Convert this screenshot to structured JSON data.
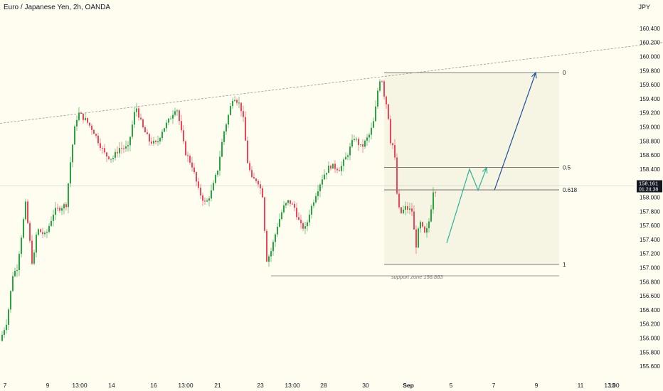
{
  "header": {
    "title": "Euro / Japanese Yen, 2h, OANDA",
    "unit": "JPY"
  },
  "colors": {
    "background": "#fffdf0",
    "up": "#26a641",
    "down": "#f0445a",
    "fib_zone": "#f6f4e2",
    "green_arrow": "#2bb39a",
    "blue_arrow": "#1a4f9a",
    "price_tag": "#131722"
  },
  "price_tag": {
    "price": "158.161",
    "countdown": "01:24:38"
  },
  "chart_data": {
    "type": "candlestick",
    "title": "Euro / Japanese Yen, 2h, OANDA",
    "ylabel": "JPY",
    "ylim": [
      155.55,
      160.55
    ],
    "y_ticks": [
      "160.400",
      "160.200",
      "160.000",
      "159.800",
      "159.600",
      "159.400",
      "159.200",
      "159.000",
      "158.800",
      "158.600",
      "158.400",
      "158.200",
      "158.000",
      "157.800",
      "157.600",
      "157.400",
      "157.200",
      "157.000",
      "156.800",
      "156.600",
      "156.400",
      "156.200",
      "156.000",
      "155.800",
      "155.600"
    ],
    "x_ticks": [
      "7",
      "9",
      "13:00",
      "14",
      "16",
      "13:00",
      "21",
      "23",
      "13:00",
      "28",
      "30",
      "Sep",
      "5",
      "7",
      "9",
      "11",
      "13",
      "13:00"
    ],
    "waypoints": [
      [
        0,
        155.9
      ],
      [
        12,
        156.25
      ],
      [
        20,
        156.9
      ],
      [
        26,
        157.0
      ],
      [
        38,
        157.9
      ],
      [
        48,
        157.0
      ],
      [
        54,
        157.55
      ],
      [
        66,
        157.45
      ],
      [
        78,
        157.8
      ],
      [
        95,
        157.9
      ],
      [
        102,
        158.6
      ],
      [
        108,
        159.05
      ],
      [
        112,
        159.2
      ],
      [
        122,
        159.1
      ],
      [
        133,
        158.95
      ],
      [
        140,
        158.8
      ],
      [
        150,
        158.6
      ],
      [
        160,
        158.55
      ],
      [
        170,
        158.7
      ],
      [
        182,
        158.7
      ],
      [
        193,
        159.3
      ],
      [
        202,
        159.0
      ],
      [
        212,
        158.8
      ],
      [
        222,
        158.75
      ],
      [
        230,
        158.95
      ],
      [
        240,
        159.1
      ],
      [
        250,
        159.3
      ],
      [
        262,
        158.65
      ],
      [
        272,
        158.45
      ],
      [
        281,
        158.1
      ],
      [
        291,
        157.9
      ],
      [
        300,
        158.1
      ],
      [
        308,
        158.4
      ],
      [
        316,
        158.9
      ],
      [
        324,
        159.2
      ],
      [
        330,
        159.45
      ],
      [
        340,
        159.3
      ],
      [
        344,
        159.1
      ],
      [
        350,
        158.5
      ],
      [
        356,
        158.25
      ],
      [
        364,
        158.25
      ],
      [
        372,
        158.0
      ],
      [
        376,
        157.1
      ],
      [
        382,
        157.2
      ],
      [
        386,
        157.35
      ],
      [
        392,
        157.6
      ],
      [
        400,
        157.85
      ],
      [
        408,
        157.95
      ],
      [
        416,
        157.85
      ],
      [
        424,
        157.6
      ],
      [
        432,
        157.55
      ],
      [
        436,
        157.75
      ],
      [
        446,
        158.05
      ],
      [
        456,
        158.3
      ],
      [
        466,
        158.45
      ],
      [
        480,
        158.4
      ],
      [
        490,
        158.6
      ],
      [
        500,
        158.85
      ],
      [
        510,
        158.7
      ],
      [
        522,
        158.9
      ],
      [
        528,
        159.1
      ],
      [
        534,
        159.6
      ],
      [
        538,
        159.75
      ],
      [
        541,
        159.5
      ],
      [
        547,
        159.25
      ],
      [
        551,
        158.8
      ],
      [
        556,
        158.7
      ],
      [
        560,
        158.05
      ],
      [
        564,
        157.75
      ],
      [
        572,
        157.85
      ],
      [
        582,
        157.8
      ],
      [
        586,
        157.25
      ],
      [
        592,
        157.65
      ],
      [
        600,
        157.45
      ],
      [
        606,
        157.7
      ],
      [
        611,
        158.1
      ]
    ],
    "trendline": {
      "style": "dashed",
      "points": [
        [
          0,
          159.05
        ],
        [
          932,
          160.2
        ]
      ]
    },
    "fib_levels": [
      {
        "label": "0",
        "price": 159.77
      },
      {
        "label": "0.5",
        "price": 158.425
      },
      {
        "label": "0.618",
        "price": 158.105
      },
      {
        "label": "1",
        "price": 157.045
      }
    ],
    "support": {
      "label": "support zone 156.883",
      "price": 156.883
    },
    "projection_green": [
      [
        628,
        157.35
      ],
      [
        660,
        158.4
      ],
      [
        672,
        158.1
      ],
      [
        684,
        158.42
      ]
    ],
    "projection_blue": [
      [
        695,
        158.1
      ],
      [
        753,
        159.77
      ]
    ]
  }
}
